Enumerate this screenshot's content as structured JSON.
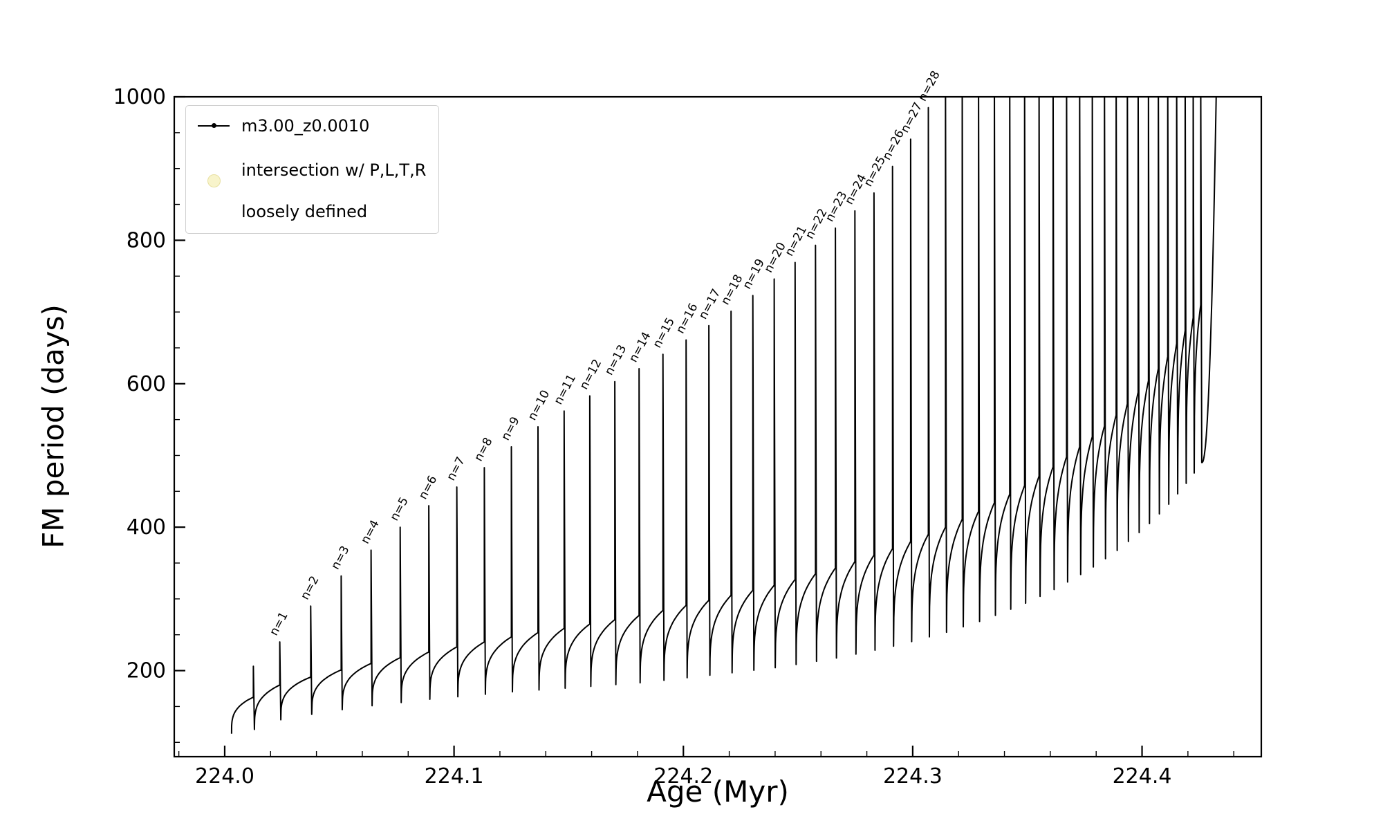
{
  "colors": {
    "background": "#ffffff",
    "axis": "#000000",
    "series_line": "#000000",
    "legend_border": "#cfcfcf",
    "intersection_marker": "#f0e68c"
  },
  "legend": {
    "series_label": "m3.00_z0.0010",
    "intersection_label_line1": "intersection w/ P,L,T,R",
    "intersection_label_line2": "loosely defined"
  },
  "chart_data": {
    "type": "line",
    "title": "",
    "xlabel": "Age (Myr)",
    "ylabel": "FM period (days)",
    "xlim": [
      223.978,
      224.452
    ],
    "ylim": [
      80,
      1000
    ],
    "xticks": [
      224.0,
      224.1,
      224.2,
      224.3,
      224.4
    ],
    "xtick_labels": [
      "224.0",
      "224.1",
      "224.2",
      "224.3",
      "224.4"
    ],
    "yticks": [
      200,
      400,
      600,
      800,
      1000
    ],
    "ytick_labels": [
      "200",
      "400",
      "600",
      "800",
      "1000"
    ],
    "x_minor_step": 0.02,
    "y_minor_step": 50,
    "grid": false,
    "legend_position": "upper-left",
    "series": [
      {
        "name": "m3.00_z0.0010",
        "description": "sawtooth curve: slowly rising envelope with narrow resonance spikes labeled n=1..28; spikes beyond n=28 exceed the top axis; curve rises steeply to >1000 days near age 224.43",
        "start": {
          "age": 224.003,
          "value": 112
        },
        "notch_depth": {
          "base": 45,
          "per_n": 3.5
        },
        "final_rise": {
          "end_age": 224.4325,
          "end_value": 1030
        },
        "spikes": [
          {
            "n": 0,
            "age": 224.0125,
            "peak": 206,
            "shoulder": 163,
            "label": ""
          },
          {
            "n": 1,
            "age": 224.024,
            "peak": 240,
            "shoulder": 180,
            "label": "n=1"
          },
          {
            "n": 2,
            "age": 224.0375,
            "peak": 290,
            "shoulder": 191,
            "label": "n=2"
          },
          {
            "n": 3,
            "age": 224.0508,
            "peak": 332,
            "shoulder": 201,
            "label": "n=3"
          },
          {
            "n": 4,
            "age": 224.0638,
            "peak": 368,
            "shoulder": 210,
            "label": "n=4"
          },
          {
            "n": 5,
            "age": 224.0765,
            "peak": 400,
            "shoulder": 218,
            "label": "n=5"
          },
          {
            "n": 6,
            "age": 224.089,
            "peak": 430,
            "shoulder": 226,
            "label": "n=6"
          },
          {
            "n": 7,
            "age": 224.1012,
            "peak": 456,
            "shoulder": 233,
            "label": "n=7"
          },
          {
            "n": 8,
            "age": 224.1132,
            "peak": 483,
            "shoulder": 240,
            "label": "n=8"
          },
          {
            "n": 9,
            "age": 224.125,
            "peak": 512,
            "shoulder": 247,
            "label": "n=9"
          },
          {
            "n": 10,
            "age": 224.1366,
            "peak": 540,
            "shoulder": 253,
            "label": "n=10"
          },
          {
            "n": 11,
            "age": 224.148,
            "peak": 562,
            "shoulder": 259,
            "label": "n=11"
          },
          {
            "n": 12,
            "age": 224.1592,
            "peak": 583,
            "shoulder": 265,
            "label": "n=12"
          },
          {
            "n": 13,
            "age": 224.1701,
            "peak": 603,
            "shoulder": 271,
            "label": "n=13"
          },
          {
            "n": 14,
            "age": 224.1807,
            "peak": 621,
            "shoulder": 277,
            "label": "n=14"
          },
          {
            "n": 15,
            "age": 224.1911,
            "peak": 641,
            "shoulder": 284,
            "label": "n=15"
          },
          {
            "n": 16,
            "age": 224.2012,
            "peak": 661,
            "shoulder": 291,
            "label": "n=16"
          },
          {
            "n": 17,
            "age": 224.2111,
            "peak": 681,
            "shoulder": 298,
            "label": "n=17"
          },
          {
            "n": 18,
            "age": 224.2208,
            "peak": 701,
            "shoulder": 305,
            "label": "n=18"
          },
          {
            "n": 19,
            "age": 224.2303,
            "peak": 723,
            "shoulder": 312,
            "label": "n=19"
          },
          {
            "n": 20,
            "age": 224.2396,
            "peak": 746,
            "shoulder": 319,
            "label": "n=20"
          },
          {
            "n": 21,
            "age": 224.2487,
            "peak": 769,
            "shoulder": 327,
            "label": "n=21"
          },
          {
            "n": 22,
            "age": 224.2576,
            "peak": 793,
            "shoulder": 335,
            "label": "n=22"
          },
          {
            "n": 23,
            "age": 224.2663,
            "peak": 817,
            "shoulder": 343,
            "label": "n=23"
          },
          {
            "n": 24,
            "age": 224.2748,
            "peak": 841,
            "shoulder": 352,
            "label": "n=24"
          },
          {
            "n": 25,
            "age": 224.2831,
            "peak": 866,
            "shoulder": 361,
            "label": "n=25"
          },
          {
            "n": 26,
            "age": 224.2912,
            "peak": 903,
            "shoulder": 370,
            "label": "n=26"
          },
          {
            "n": 27,
            "age": 224.2991,
            "peak": 941,
            "shoulder": 380,
            "label": "n=27"
          },
          {
            "n": 28,
            "age": 224.3068,
            "peak": 985,
            "shoulder": 390,
            "label": "n=28"
          },
          {
            "n": 29,
            "age": 224.3143,
            "peak": 1030,
            "shoulder": 400,
            "label": ""
          },
          {
            "n": 30,
            "age": 224.3216,
            "peak": 1030,
            "shoulder": 411,
            "label": ""
          },
          {
            "n": 31,
            "age": 224.3287,
            "peak": 1030,
            "shoulder": 422,
            "label": ""
          },
          {
            "n": 32,
            "age": 224.3356,
            "peak": 1030,
            "shoulder": 434,
            "label": ""
          },
          {
            "n": 33,
            "age": 224.3423,
            "peak": 1030,
            "shoulder": 446,
            "label": ""
          },
          {
            "n": 34,
            "age": 224.3488,
            "peak": 1030,
            "shoulder": 458,
            "label": ""
          },
          {
            "n": 35,
            "age": 224.3551,
            "peak": 1030,
            "shoulder": 471,
            "label": ""
          },
          {
            "n": 36,
            "age": 224.3612,
            "peak": 1030,
            "shoulder": 484,
            "label": ""
          },
          {
            "n": 37,
            "age": 224.3671,
            "peak": 1030,
            "shoulder": 498,
            "label": ""
          },
          {
            "n": 38,
            "age": 224.3728,
            "peak": 1030,
            "shoulder": 512,
            "label": ""
          },
          {
            "n": 39,
            "age": 224.3783,
            "peak": 1030,
            "shoulder": 526,
            "label": ""
          },
          {
            "n": 40,
            "age": 224.3836,
            "peak": 1030,
            "shoulder": 541,
            "label": ""
          },
          {
            "n": 41,
            "age": 224.3887,
            "peak": 1030,
            "shoulder": 556,
            "label": ""
          },
          {
            "n": 42,
            "age": 224.3936,
            "peak": 1030,
            "shoulder": 572,
            "label": ""
          },
          {
            "n": 43,
            "age": 224.3983,
            "peak": 1030,
            "shoulder": 588,
            "label": ""
          },
          {
            "n": 44,
            "age": 224.4028,
            "peak": 1030,
            "shoulder": 604,
            "label": ""
          },
          {
            "n": 45,
            "age": 224.4071,
            "peak": 1030,
            "shoulder": 621,
            "label": ""
          },
          {
            "n": 46,
            "age": 224.4112,
            "peak": 1030,
            "shoulder": 638,
            "label": ""
          },
          {
            "n": 47,
            "age": 224.4151,
            "peak": 1030,
            "shoulder": 656,
            "label": ""
          },
          {
            "n": 48,
            "age": 224.4188,
            "peak": 1030,
            "shoulder": 674,
            "label": ""
          },
          {
            "n": 49,
            "age": 224.4223,
            "peak": 1030,
            "shoulder": 692,
            "label": ""
          },
          {
            "n": 50,
            "age": 224.4256,
            "peak": 1030,
            "shoulder": 710,
            "label": ""
          }
        ]
      }
    ]
  }
}
